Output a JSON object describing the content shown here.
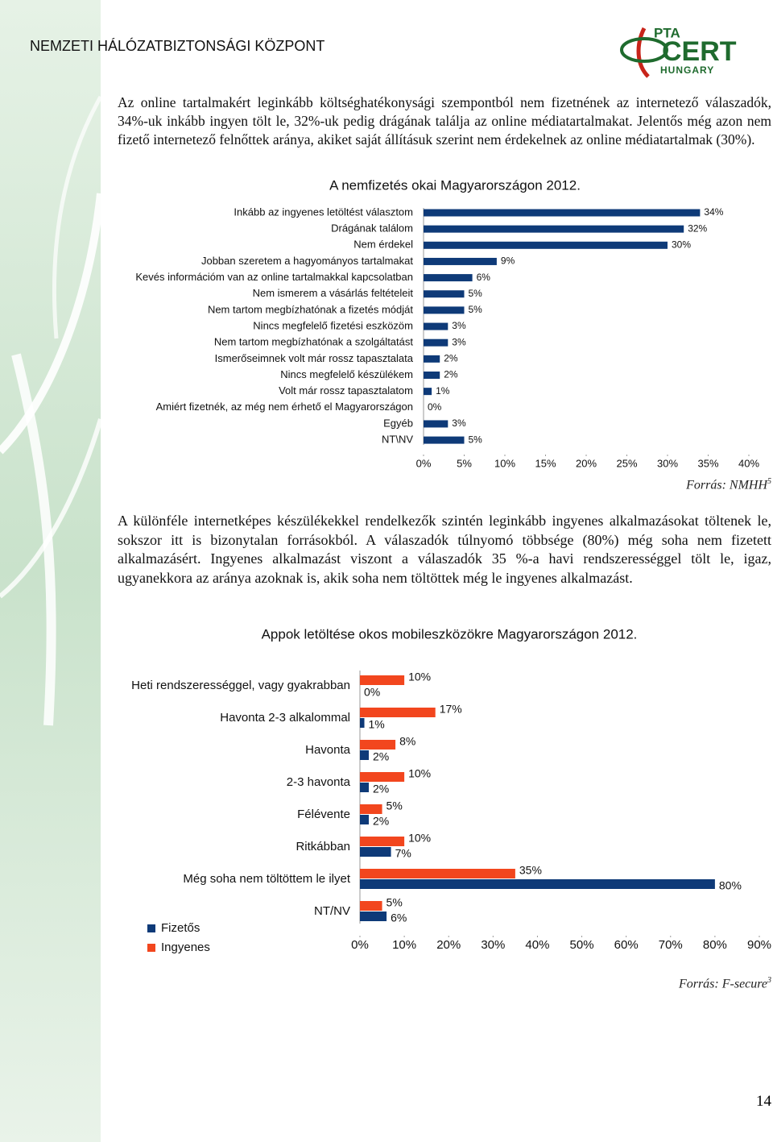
{
  "header": {
    "organization": "NEMZETI HÁLÓZATBIZTONSÁGI KÖZPONT",
    "logo": {
      "top": "PTA",
      "main": "CERT",
      "bottom": "HUNGARY"
    }
  },
  "paragraphs": [
    "Az online tartalmakért leginkább költséghatékonysági szempontból nem fizetnének az internetező válaszadók, 34%-uk inkább ingyen tölt le, 32%-uk pedig drágának találja az online médiatartalmakat. Jelentős még azon nem fizető internetező felnőttek aránya, akiket saját állításuk szerint nem érdekelnek az online médiatartalmak (30%).",
    "A különféle internetképes készülékekkel rendelkezők szintén leginkább ingyenes alkalmazásokat töltenek le, sokszor itt is bizonytalan forrásokból. A válaszadók túlnyomó többsége (80%) még soha nem fizetett alkalmazásért. Ingyenes alkalmazást viszont a válaszadók 35 %-a havi rendszerességgel tölt le, igaz, ugyanekkora az aránya azoknak is, akik soha nem töltöttek még le ingyenes alkalmazást."
  ],
  "chart_data": [
    {
      "type": "bar",
      "orientation": "horizontal",
      "title": "A nemfizetés okai Magyarországon 2012.",
      "categories": [
        "Inkább az ingyenes letöltést választom",
        "Drágának találom",
        "Nem érdekel",
        "Jobban szeretem a hagyományos tartalmakat",
        "Kevés információm van az online tartalmakkal kapcsolatban",
        "Nem ismerem a vásárlás feltételeit",
        "Nem tartom megbízhatónak a fizetés módját",
        "Nincs megfelelő fizetési eszközöm",
        "Nem tartom megbízhatónak a szolgáltatást",
        "Ismerőseimnek volt már rossz tapasztalata",
        "Nincs megfelelő készülékem",
        "Volt már rossz tapasztalatom",
        "Amiért fizetnék, az még nem érhető el Magyarországon",
        "Egyéb",
        "NT\\NV"
      ],
      "values": [
        34,
        32,
        30,
        9,
        6,
        5,
        5,
        3,
        3,
        2,
        2,
        1,
        0,
        3,
        5
      ],
      "value_labels": [
        "34%",
        "32%",
        "30%",
        "9%",
        "6%",
        "5%",
        "5%",
        "3%",
        "3%",
        "2%",
        "2%",
        "1%",
        "0%",
        "3%",
        "5%"
      ],
      "color": "#0e3a78",
      "xlim": [
        0,
        40
      ],
      "xticks": [
        {
          "value": 0,
          "label": "0%"
        },
        {
          "value": 5,
          "label": "5%"
        },
        {
          "value": 10,
          "label": "10%"
        },
        {
          "value": 15,
          "label": "15%"
        },
        {
          "value": 20,
          "label": "20%"
        },
        {
          "value": 25,
          "label": "25%"
        },
        {
          "value": 30,
          "label": "30%"
        },
        {
          "value": 35,
          "label": "35%"
        },
        {
          "value": 40,
          "label": "40%"
        }
      ],
      "grid": false
    },
    {
      "type": "bar",
      "orientation": "horizontal",
      "title": "Appok letöltése okos mobileszközökre Magyarországon 2012.",
      "categories": [
        "Heti rendszerességgel, vagy gyakrabban",
        "Havonta 2-3 alkalommal",
        "Havonta",
        "2-3 havonta",
        "Félévente",
        "Ritkábban",
        "Még soha nem töltöttem le ilyet",
        "NT/NV"
      ],
      "series": [
        {
          "name": "Fizetős",
          "color": "#0e3a78",
          "values": [
            0,
            1,
            2,
            2,
            2,
            7,
            80,
            6
          ],
          "value_labels": [
            "0%",
            "1%",
            "2%",
            "2%",
            "2%",
            "7%",
            "80%",
            "6%"
          ]
        },
        {
          "name": "Ingyenes",
          "color": "#f2461e",
          "values": [
            10,
            17,
            8,
            10,
            5,
            10,
            35,
            5
          ],
          "value_labels": [
            "10%",
            "17%",
            "8%",
            "10%",
            "5%",
            "10%",
            "35%",
            "5%"
          ]
        }
      ],
      "xlim": [
        0,
        90
      ],
      "xticks": [
        {
          "value": 0,
          "label": "0%"
        },
        {
          "value": 10,
          "label": "10%"
        },
        {
          "value": 20,
          "label": "20%"
        },
        {
          "value": 30,
          "label": "30%"
        },
        {
          "value": 40,
          "label": "40%"
        },
        {
          "value": 50,
          "label": "50%"
        },
        {
          "value": 60,
          "label": "60%"
        },
        {
          "value": 70,
          "label": "70%"
        },
        {
          "value": 80,
          "label": "80%"
        },
        {
          "value": 90,
          "label": "90%"
        }
      ],
      "legend": "bottom-left",
      "grid": false
    }
  ],
  "sources": [
    {
      "text": "Forrás: NMHH",
      "footnote": "5"
    },
    {
      "text": "Forrás: F-secure",
      "footnote": "3"
    }
  ],
  "page_number": "14"
}
